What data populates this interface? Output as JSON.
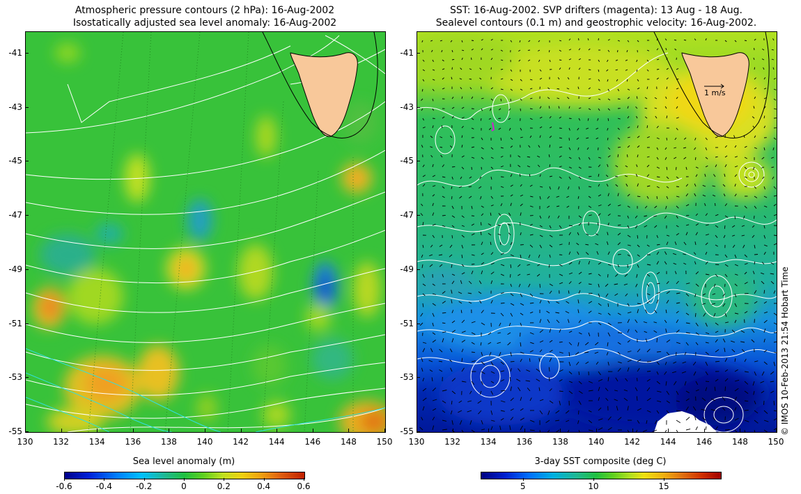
{
  "left_panel": {
    "title_line1": "Atmospheric pressure contours (2 hPa): 16-Aug-2002",
    "title_line2": "Isostatically adjusted sea level anomaly: 16-Aug-2002",
    "colorbar_label": "Sea level anomaly (m)",
    "colorbar_ticks": [
      "-0.6",
      "-0.4",
      "-0.2",
      "0",
      "0.2",
      "0.4",
      "0.6"
    ],
    "colorbar_range": [
      -0.6,
      0.6
    ]
  },
  "right_panel": {
    "title_line1": "SST: 16-Aug-2002. SVP drifters (magenta): 13 Aug - 18 Aug.",
    "title_line2": "Sealevel contours (0.1 m) and geostrophic velocity: 16-Aug-2002.",
    "colorbar_label": "3-day SST composite (deg C)",
    "colorbar_ticks": [
      "5",
      "10",
      "15"
    ],
    "colorbar_tick_values": [
      5,
      10,
      15
    ],
    "colorbar_range": [
      2,
      19
    ],
    "vector_scale_label": "1 m/s"
  },
  "axes": {
    "x_ticks": [
      "130",
      "132",
      "134",
      "136",
      "138",
      "140",
      "142",
      "144",
      "146",
      "148",
      "150"
    ],
    "y_ticks": [
      "-41",
      "-43",
      "-45",
      "-47",
      "-49",
      "-51",
      "-53",
      "-55"
    ],
    "lon_range": [
      130,
      150
    ],
    "lat_range": [
      -55,
      -40.2
    ]
  },
  "copyright": "© IMOS 10-Feb-2013 21:54 Hobart Time",
  "colors": {
    "land": "#f8c89a",
    "coastline": "#000000",
    "contour": "#ffffff",
    "drifter": "#d020d0",
    "ocean_green": "#30c040"
  }
}
